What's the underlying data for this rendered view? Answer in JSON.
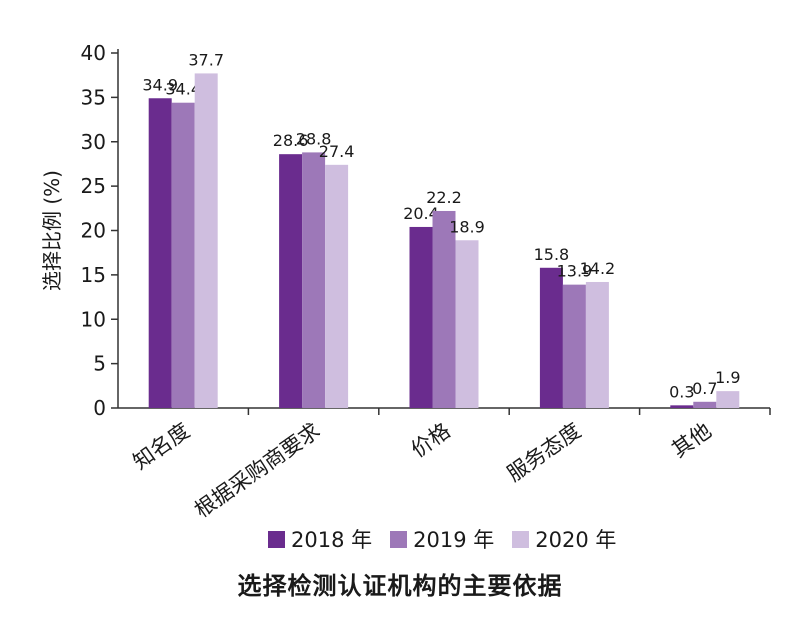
{
  "chart_data": {
    "type": "bar",
    "title": "选择检测认证机构的主要依据",
    "ylabel": "选择比例 (%)",
    "xlabel": "",
    "ylim": [
      0,
      40
    ],
    "yticks": [
      "0",
      "5",
      "10",
      "15",
      "20",
      "25",
      "30",
      "35",
      "40"
    ],
    "categories": [
      "知名度",
      "根据采购商要求",
      "价格",
      "服务态度",
      "其他"
    ],
    "series": [
      {
        "name": "2018 年",
        "color": "#6a2c8e",
        "values": [
          34.9,
          28.6,
          20.4,
          15.8,
          0.3
        ]
      },
      {
        "name": "2019 年",
        "color": "#9d78b8",
        "values": [
          34.4,
          28.8,
          22.2,
          13.9,
          0.7
        ]
      },
      {
        "name": "2020 年",
        "color": "#cfbedf",
        "values": [
          37.7,
          27.4,
          18.9,
          14.2,
          1.9
        ]
      }
    ],
    "grid": false,
    "legend_position": "bottom"
  }
}
